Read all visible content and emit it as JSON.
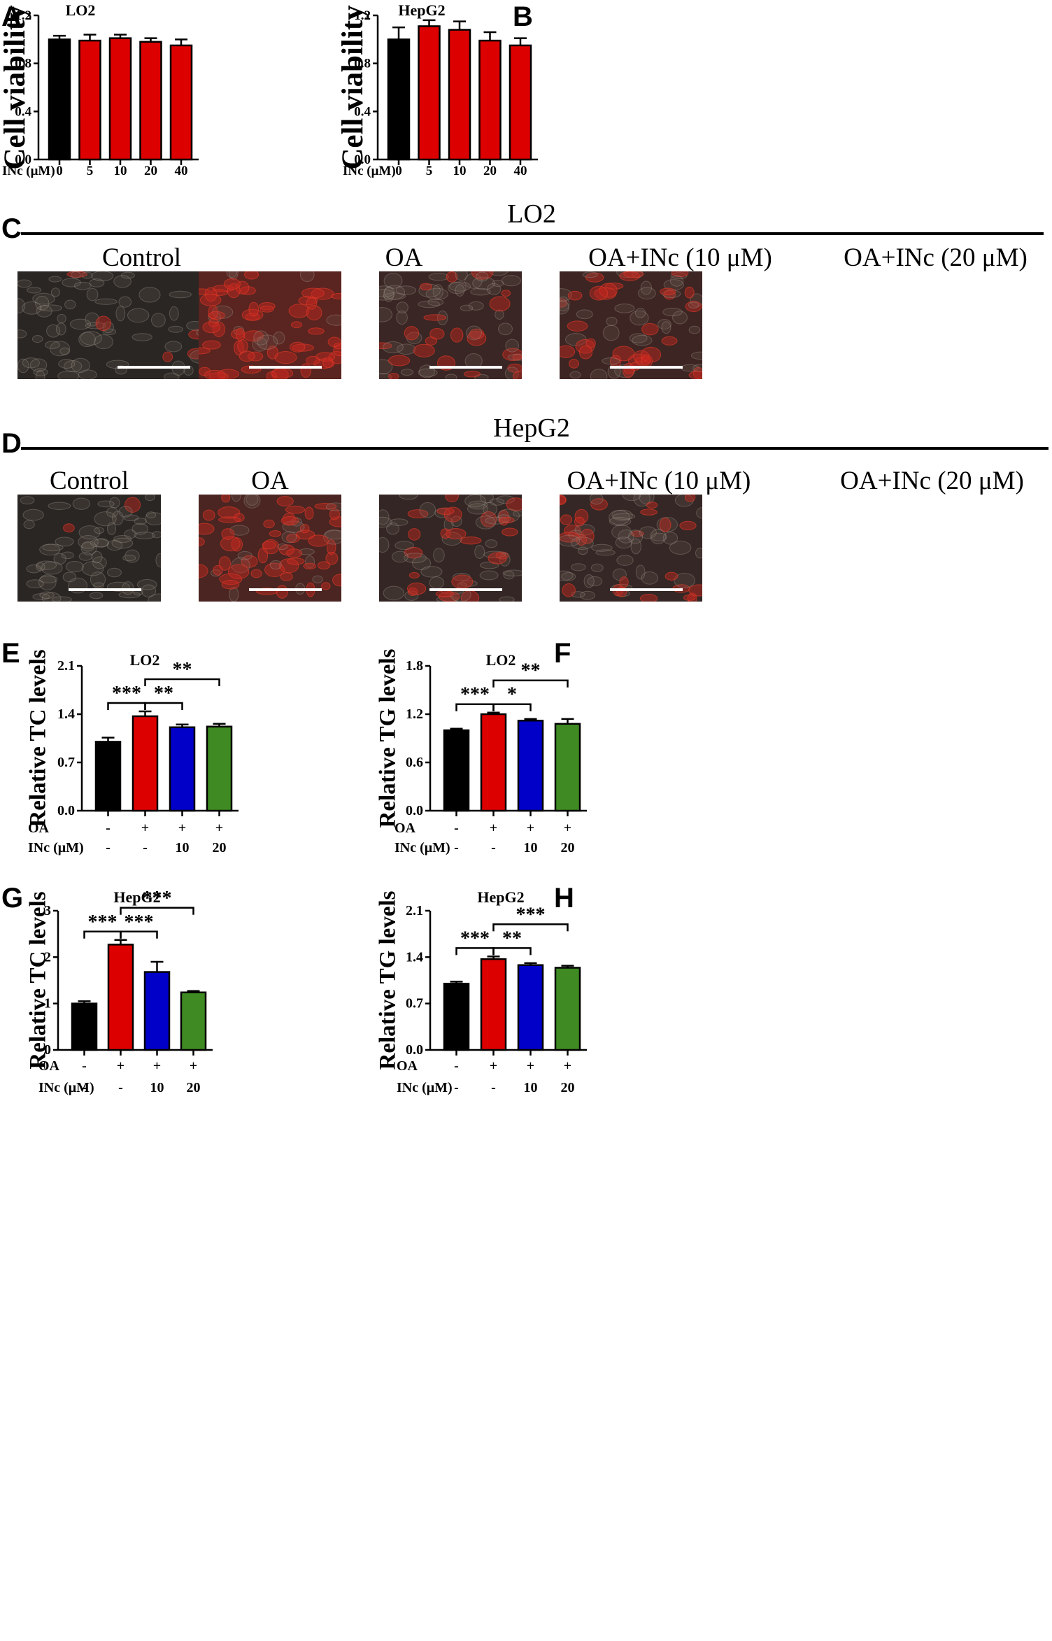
{
  "figure": {
    "panel_letters": [
      "A",
      "B",
      "C",
      "D",
      "E",
      "F",
      "G",
      "H"
    ],
    "panel_c": {
      "header": "LO2",
      "labels": [
        "Control",
        "OA",
        "OA+INc (10 μM)",
        "OA+INc (20 μM)"
      ],
      "images": [
        {
          "name": "lo2-control",
          "tint": "#2a2624",
          "stain": 0.05
        },
        {
          "name": "lo2-oa",
          "tint": "#5a2420",
          "stain": 0.85
        },
        {
          "name": "lo2-oa-inc10",
          "tint": "#3a2624",
          "stain": 0.35
        },
        {
          "name": "lo2-oa-inc20",
          "tint": "#3d2523",
          "stain": 0.4
        }
      ]
    },
    "panel_d": {
      "header": "HepG2",
      "labels": [
        "Control",
        "OA",
        "OA+INc (10 μM)",
        "OA+INc (20 μM)"
      ],
      "images": [
        {
          "name": "hepg2-control",
          "tint": "#2a2624",
          "stain": 0.05
        },
        {
          "name": "hepg2-oa",
          "tint": "#4a2522",
          "stain": 0.7
        },
        {
          "name": "hepg2-oa-inc10",
          "tint": "#332624",
          "stain": 0.25
        },
        {
          "name": "hepg2-oa-inc20",
          "tint": "#352725",
          "stain": 0.3
        }
      ]
    }
  },
  "colors": {
    "control": "#000000",
    "oa": "#dd0000",
    "inc10": "#0000c8",
    "inc20": "#3f8a22"
  },
  "chart_data": [
    {
      "id": "A",
      "type": "bar",
      "title": "LO2",
      "ylabel": "Cell viability",
      "row_labels": [
        "INc (μM)"
      ],
      "rows": [
        [
          "0",
          "5",
          "10",
          "20",
          "40"
        ]
      ],
      "values": [
        1.0,
        0.99,
        1.01,
        0.98,
        0.95
      ],
      "errors": [
        0.03,
        0.05,
        0.03,
        0.03,
        0.05
      ],
      "bar_colors": [
        "control",
        "oa",
        "oa",
        "oa",
        "oa"
      ],
      "ylim": [
        0,
        1.2
      ],
      "yticks": [
        "0.0",
        "0.4",
        "0.8",
        "1.2"
      ],
      "sig": []
    },
    {
      "id": "B",
      "type": "bar",
      "title": "HepG2",
      "ylabel": "Cell viability",
      "row_labels": [
        "INc (μM)"
      ],
      "rows": [
        [
          "0",
          "5",
          "10",
          "20",
          "40"
        ]
      ],
      "values": [
        1.0,
        1.11,
        1.08,
        0.99,
        0.95
      ],
      "errors": [
        0.1,
        0.05,
        0.07,
        0.07,
        0.06
      ],
      "bar_colors": [
        "control",
        "oa",
        "oa",
        "oa",
        "oa"
      ],
      "ylim": [
        0,
        1.2
      ],
      "yticks": [
        "0.0",
        "0.4",
        "0.8",
        "1.2"
      ],
      "sig": []
    },
    {
      "id": "E",
      "type": "bar",
      "title": "LO2",
      "ylabel": "Relative TC levels",
      "row_labels": [
        "OA",
        "INc (μM)"
      ],
      "rows": [
        [
          "-",
          "+",
          "+",
          "+"
        ],
        [
          "-",
          "-",
          "10",
          "20"
        ]
      ],
      "values": [
        1.0,
        1.37,
        1.21,
        1.22
      ],
      "errors": [
        0.06,
        0.07,
        0.04,
        0.04
      ],
      "bar_colors": [
        "control",
        "oa",
        "inc10",
        "inc20"
      ],
      "ylim": [
        0,
        2.1
      ],
      "yticks": [
        "0.0",
        "0.7",
        "1.4",
        "2.1"
      ],
      "sig": [
        {
          "from": 0,
          "to": 1,
          "level": 1,
          "label": "***"
        },
        {
          "from": 1,
          "to": 2,
          "level": 1,
          "label": "**"
        },
        {
          "from": 1,
          "to": 3,
          "level": 2,
          "label": "**"
        }
      ]
    },
    {
      "id": "F",
      "type": "bar",
      "title": "LO2",
      "ylabel": "Relative TG levels",
      "row_labels": [
        "OA",
        "INc (μM)"
      ],
      "rows": [
        [
          "-",
          "+",
          "+",
          "+"
        ],
        [
          "-",
          "-",
          "10",
          "20"
        ]
      ],
      "values": [
        1.0,
        1.2,
        1.12,
        1.08
      ],
      "errors": [
        0.02,
        0.02,
        0.02,
        0.06
      ],
      "bar_colors": [
        "control",
        "oa",
        "inc10",
        "inc20"
      ],
      "ylim": [
        0,
        1.8
      ],
      "yticks": [
        "0.0",
        "0.6",
        "1.2",
        "1.8"
      ],
      "sig": [
        {
          "from": 0,
          "to": 1,
          "level": 1,
          "label": "***"
        },
        {
          "from": 1,
          "to": 2,
          "level": 1,
          "label": "*"
        },
        {
          "from": 1,
          "to": 3,
          "level": 2,
          "label": "**"
        }
      ]
    },
    {
      "id": "G",
      "type": "bar",
      "title": "HepG2",
      "ylabel": "Relative TC levels",
      "row_labels": [
        "OA",
        "INc (μM)"
      ],
      "rows": [
        [
          "-",
          "+",
          "+",
          "+"
        ],
        [
          "-",
          "-",
          "10",
          "20"
        ]
      ],
      "values": [
        1.0,
        2.27,
        1.68,
        1.24
      ],
      "errors": [
        0.05,
        0.1,
        0.22,
        0.03
      ],
      "bar_colors": [
        "control",
        "oa",
        "inc10",
        "inc20"
      ],
      "ylim": [
        0,
        3
      ],
      "yticks": [
        "0",
        "1",
        "2",
        "3"
      ],
      "sig": [
        {
          "from": 0,
          "to": 1,
          "level": 1,
          "label": "***"
        },
        {
          "from": 1,
          "to": 2,
          "level": 1,
          "label": "***"
        },
        {
          "from": 1,
          "to": 3,
          "level": 2,
          "label": "***"
        }
      ]
    },
    {
      "id": "H",
      "type": "bar",
      "title": "HepG2",
      "ylabel": "Relative TG levels",
      "row_labels": [
        "OA",
        "INc (μM)"
      ],
      "rows": [
        [
          "-",
          "+",
          "+",
          "+"
        ],
        [
          "-",
          "-",
          "10",
          "20"
        ]
      ],
      "values": [
        1.0,
        1.37,
        1.28,
        1.24
      ],
      "errors": [
        0.03,
        0.04,
        0.03,
        0.03
      ],
      "bar_colors": [
        "control",
        "oa",
        "inc10",
        "inc20"
      ],
      "ylim": [
        0,
        2.1
      ],
      "yticks": [
        "0.0",
        "0.7",
        "1.4",
        "2.1"
      ],
      "sig": [
        {
          "from": 0,
          "to": 1,
          "level": 1,
          "label": "***"
        },
        {
          "from": 1,
          "to": 2,
          "level": 1,
          "label": "**"
        },
        {
          "from": 1,
          "to": 3,
          "level": 2,
          "label": "***"
        }
      ]
    }
  ]
}
